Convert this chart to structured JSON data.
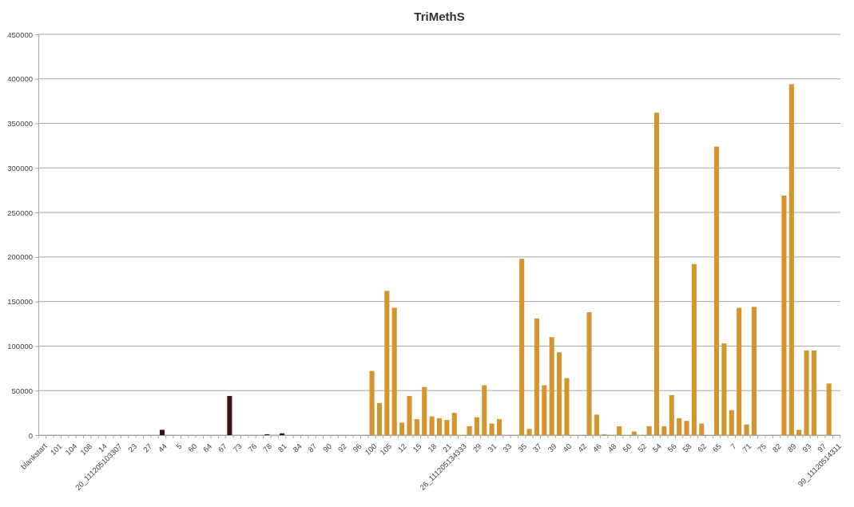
{
  "chart_data": {
    "type": "bar",
    "title": "TriMethS",
    "categories": [
      "blankstart",
      null,
      "101",
      null,
      "104",
      null,
      "108",
      null,
      "14",
      null,
      "20_111205103307",
      null,
      "23",
      null,
      "27",
      null,
      "44",
      null,
      "5",
      null,
      "60",
      null,
      "64",
      null,
      "67",
      null,
      "73",
      null,
      "76",
      null,
      "78",
      null,
      "81",
      null,
      "84",
      null,
      "87",
      null,
      "90",
      null,
      "92",
      null,
      "96",
      null,
      "100",
      null,
      "105",
      null,
      "12",
      null,
      "15",
      null,
      "18",
      null,
      "21",
      null,
      "26_111205134333",
      null,
      "29",
      null,
      "31",
      null,
      "33",
      null,
      "35",
      null,
      "37",
      null,
      "39",
      null,
      "40",
      null,
      "42",
      null,
      "46",
      null,
      "48",
      null,
      "50",
      null,
      "52",
      null,
      "54",
      null,
      "56",
      null,
      "58",
      null,
      "62",
      null,
      "65",
      null,
      "7",
      null,
      "71",
      null,
      "75",
      null,
      "82",
      null,
      "89",
      null,
      "93",
      null,
      "97",
      null,
      "99_11120514311"
    ],
    "values": [
      0,
      0,
      0,
      0,
      0,
      0,
      0,
      0,
      0,
      0,
      0,
      0,
      0,
      0,
      0,
      0,
      6000,
      0,
      0,
      0,
      0,
      0,
      0,
      0,
      0,
      44000,
      0,
      0,
      0,
      0,
      1000,
      0,
      2000,
      0,
      0,
      0,
      0,
      0,
      0,
      0,
      0,
      0,
      0,
      0,
      72000,
      36000,
      162000,
      143000,
      14000,
      44000,
      18000,
      54000,
      21000,
      19000,
      17000,
      25000,
      0,
      10000,
      20000,
      56000,
      13000,
      18000,
      0,
      0,
      198000,
      7000,
      131000,
      56000,
      110000,
      93000,
      64000,
      0,
      0,
      138000,
      23000,
      1000,
      0,
      10000,
      0,
      4000,
      0,
      10000,
      362000,
      10000,
      45000,
      19000,
      16000,
      192000,
      13000,
      0,
      324000,
      103000,
      28000,
      143000,
      12000,
      144000,
      0,
      0,
      0,
      269000,
      394000,
      6000,
      95000,
      95000,
      0,
      58000,
      0
    ],
    "colors": [
      "#d4952f",
      "#d4952f",
      "#d4952f",
      "#d4952f",
      "#d4952f",
      "#d4952f",
      "#d4952f",
      "#d4952f",
      "#d4952f",
      "#d4952f",
      "#d4952f",
      "#d4952f",
      "#d4952f",
      "#d4952f",
      "#d4952f",
      "#d4952f",
      "#3d1212",
      "#d4952f",
      "#d4952f",
      "#d4952f",
      "#d4952f",
      "#d4952f",
      "#d4952f",
      "#d4952f",
      "#d4952f",
      "#3d1212",
      "#d4952f",
      "#d4952f",
      "#d4952f",
      "#d4952f",
      "#3d1212",
      "#d4952f",
      "#3d1212",
      "#d4952f",
      "#d4952f",
      "#d4952f",
      "#d4952f",
      "#d4952f",
      "#d4952f",
      "#d4952f",
      "#d4952f",
      "#d4952f",
      "#d4952f",
      "#d4952f",
      "#d4952f",
      "#d4952f",
      "#d4952f",
      "#d4952f",
      "#d4952f",
      "#d4952f",
      "#d4952f",
      "#d4952f",
      "#d4952f",
      "#d4952f",
      "#d4952f",
      "#d4952f",
      "#d4952f",
      "#d4952f",
      "#d4952f",
      "#d4952f",
      "#d4952f",
      "#d4952f",
      "#d4952f",
      "#d4952f",
      "#d4952f",
      "#d4952f",
      "#d4952f",
      "#d4952f",
      "#d4952f",
      "#d4952f",
      "#d4952f",
      "#d4952f",
      "#d4952f",
      "#d4952f",
      "#d4952f",
      "#d4952f",
      "#d4952f",
      "#d4952f",
      "#d4952f",
      "#d4952f",
      "#d4952f",
      "#d4952f",
      "#d4952f",
      "#d4952f",
      "#d4952f",
      "#d4952f",
      "#d4952f",
      "#d4952f",
      "#d4952f",
      "#d4952f",
      "#d4952f",
      "#d4952f",
      "#d4952f",
      "#d4952f",
      "#d4952f",
      "#d4952f",
      "#d4952f",
      "#d4952f",
      "#d4952f",
      "#d4952f",
      "#d4952f",
      "#d4952f",
      "#d4952f",
      "#d4952f",
      "#d4952f",
      "#d4952f",
      "#d4952f"
    ],
    "ylim": [
      0,
      450000
    ],
    "yticks": [
      0,
      50000,
      100000,
      150000,
      200000,
      250000,
      300000,
      350000,
      400000,
      450000
    ],
    "grid": "y"
  }
}
